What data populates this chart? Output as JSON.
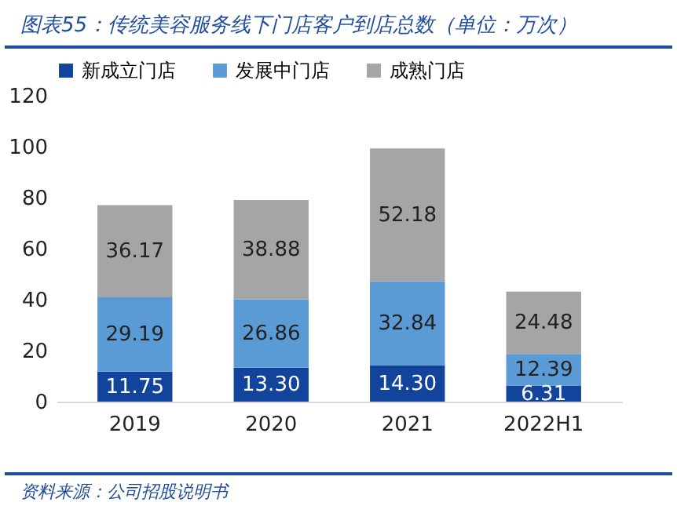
{
  "chart_data": {
    "type": "bar",
    "title": "图表55：传统美容服务线下门店客户到店总数（单位：万次）",
    "annotations": [
      "资料来源：公司招股说明书"
    ],
    "categories": [
      "2019",
      "2020",
      "2021",
      "2022H1"
    ],
    "stacked": true,
    "series": [
      {
        "name": "新成立门店",
        "color": "#12449b",
        "values": [
          11.75,
          13.3,
          14.3,
          6.31
        ],
        "value_labels": [
          "11.75",
          "13.30",
          "14.30",
          "6.31"
        ]
      },
      {
        "name": "发展中门店",
        "color": "#5b9bd5",
        "values": [
          29.19,
          26.86,
          32.84,
          12.39
        ],
        "value_labels": [
          "29.19",
          "26.86",
          "32.84",
          "12.39"
        ]
      },
      {
        "name": "成熟门店",
        "color": "#a5a5a5",
        "values": [
          36.17,
          38.88,
          52.18,
          24.48
        ],
        "value_labels": [
          "36.17",
          "38.88",
          "52.18",
          "24.48"
        ]
      }
    ],
    "ylim": [
      0,
      120
    ],
    "yticks": [
      0,
      20,
      40,
      60,
      80,
      100,
      120
    ],
    "grid": false,
    "legend": "top"
  }
}
